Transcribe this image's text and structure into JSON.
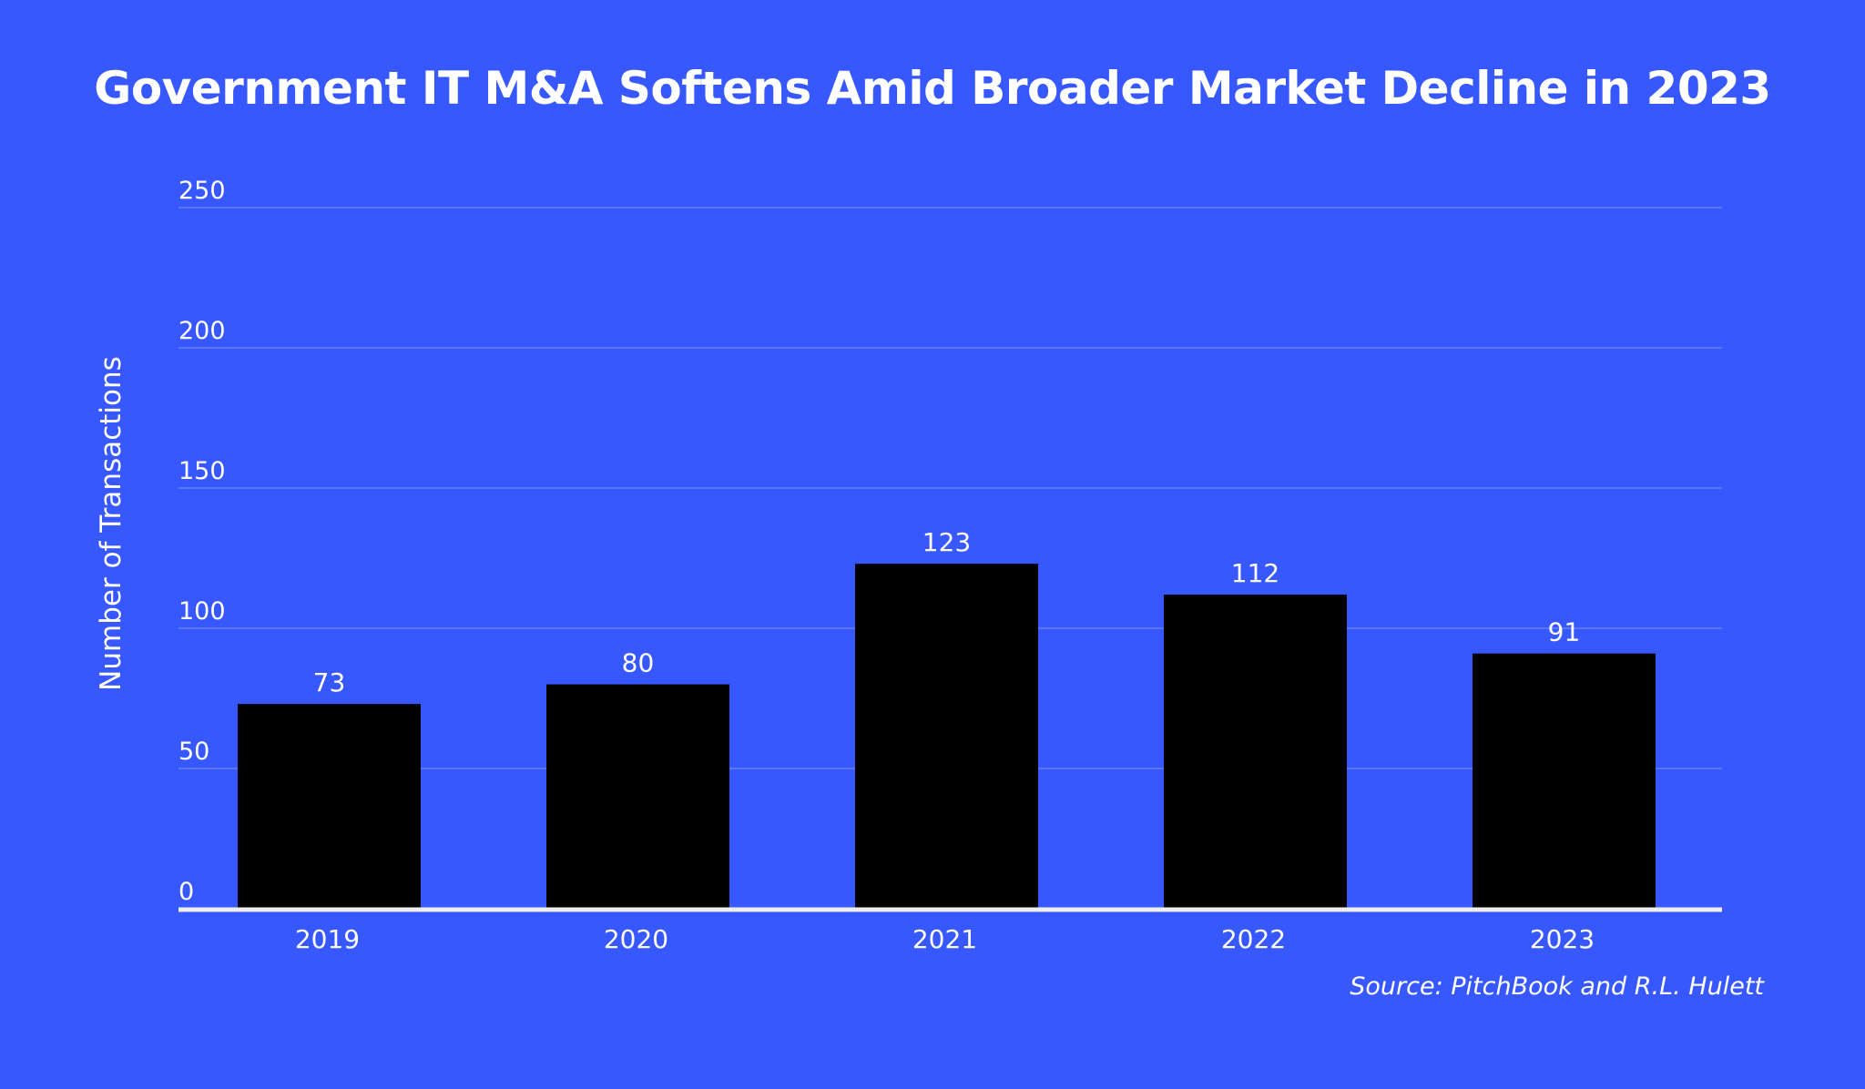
{
  "chart_data": {
    "type": "bar",
    "title": "Government IT M&A Softens Amid Broader Market Decline in 2023",
    "xlabel": "",
    "ylabel": "Number of Transactions",
    "categories": [
      "2019",
      "2020",
      "2021",
      "2022",
      "2023"
    ],
    "values": [
      73,
      80,
      123,
      112,
      91
    ],
    "ylim": [
      0,
      250
    ],
    "yticks": [
      0,
      50,
      100,
      150,
      200,
      250
    ],
    "grid": true,
    "legend": "none",
    "source": "Source: PitchBook and R.L. Hulett",
    "colors": {
      "background": "#3858FF",
      "bar": "#000000",
      "grid": "#5A78FF",
      "axis": "#EEEEEE",
      "text": "#FFFFFF"
    }
  }
}
